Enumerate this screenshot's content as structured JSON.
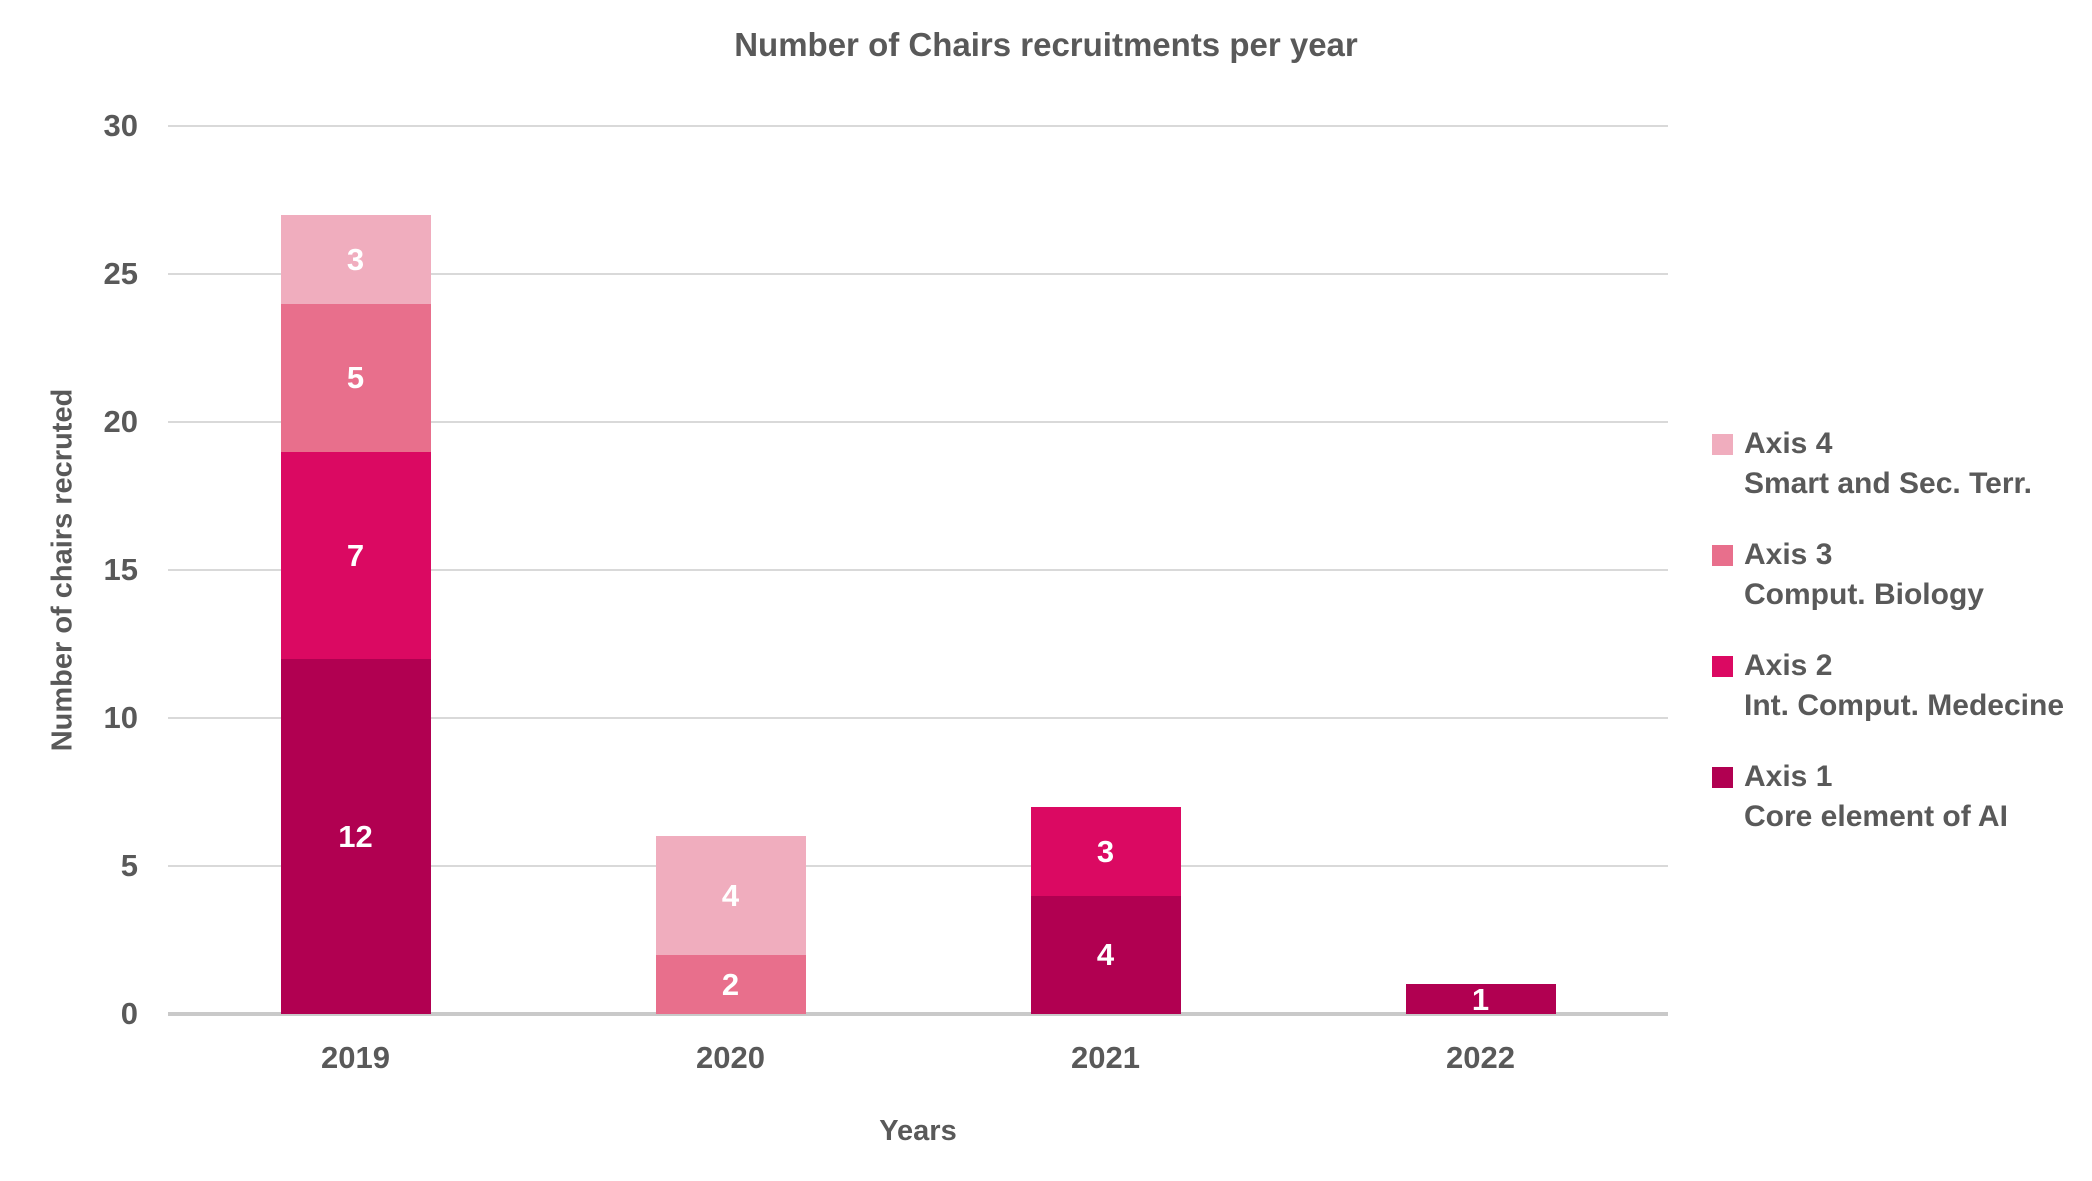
{
  "title": "Number of Chairs recruitments per year",
  "axes": {
    "y_label": "Number of chairs recruted",
    "x_label": "Years",
    "y_ticks": [
      0,
      5,
      10,
      15,
      20,
      25,
      30
    ]
  },
  "legend": [
    {
      "axis": "Axis 4",
      "desc": "Smart and Sec. Terr.",
      "color": "#F0ADBE"
    },
    {
      "axis": "Axis 3",
      "desc": "Comput. Biology",
      "color": "#E86F8C"
    },
    {
      "axis": "Axis 2",
      "desc": "Int. Comput. Medecine",
      "color": "#DB0962"
    },
    {
      "axis": "Axis 1",
      "desc": "Core element of AI",
      "color": "#B10051"
    }
  ],
  "chart_data": {
    "type": "bar",
    "stacked": true,
    "title": "Number of Chairs recruitments per year",
    "xlabel": "Years",
    "ylabel": "Number of chairs recruted",
    "categories": [
      "2019",
      "2020",
      "2021",
      "2022"
    ],
    "series": [
      {
        "name": "Axis 1 Core element of AI",
        "color": "#B10051",
        "values": [
          12,
          0,
          4,
          1
        ]
      },
      {
        "name": "Axis 2 Int. Comput. Medecine",
        "color": "#DB0962",
        "values": [
          7,
          0,
          3,
          0
        ]
      },
      {
        "name": "Axis 3 Comput. Biology",
        "color": "#E86F8C",
        "values": [
          5,
          2,
          0,
          0
        ]
      },
      {
        "name": "Axis 4 Smart and Sec. Terr.",
        "color": "#F0ADBE",
        "values": [
          3,
          4,
          0,
          0
        ]
      }
    ],
    "totals": [
      27,
      6,
      7,
      1
    ],
    "ylim": [
      0,
      30
    ],
    "grid": true,
    "legend_position": "right"
  },
  "colors": {
    "text": "#595959",
    "gridline": "#D9D9D9",
    "baseline": "#C9C9C9",
    "background": "#FFFFFF",
    "bar_label": "#FFFFFF"
  }
}
